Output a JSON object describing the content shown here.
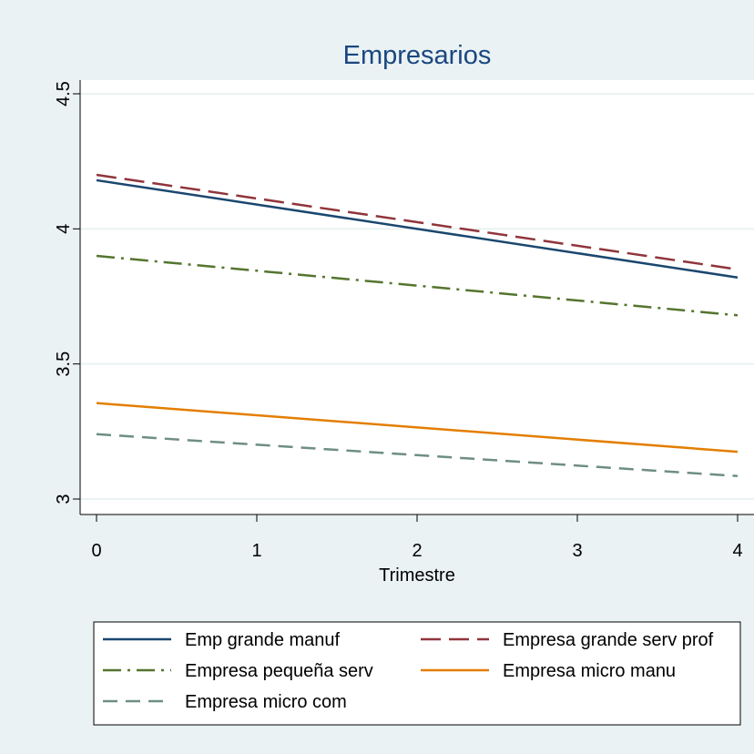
{
  "chart_data": {
    "type": "line",
    "title": "Empresarios",
    "xlabel": "Trimestre",
    "ylabel": "",
    "xlim": [
      0,
      4
    ],
    "ylim": [
      3,
      4.5
    ],
    "x_ticks": [
      "0",
      "1",
      "2",
      "3",
      "4"
    ],
    "y_ticks": [
      "3",
      "3.5",
      "4",
      "4.5"
    ],
    "grid": "horizontal",
    "legend_position": "bottom",
    "x": [
      0,
      4
    ],
    "series": [
      {
        "name": "Emp grande manuf",
        "values": [
          4.18,
          3.82
        ],
        "color": "#1a476f",
        "dash": "solid"
      },
      {
        "name": "Empresa grande serv prof",
        "values": [
          4.2,
          3.85
        ],
        "color": "#90353b",
        "dash": "long-dash"
      },
      {
        "name": "Empresa pequeña serv",
        "values": [
          3.9,
          3.68
        ],
        "color": "#55752f",
        "dash": "dash-dot"
      },
      {
        "name": "Empresa micro manu",
        "values": [
          3.355,
          3.175
        ],
        "color": "#e37e00",
        "dash": "solid"
      },
      {
        "name": "Empresa micro com",
        "values": [
          3.24,
          3.085
        ],
        "color": "#6e8e84",
        "dash": "dash"
      }
    ]
  }
}
